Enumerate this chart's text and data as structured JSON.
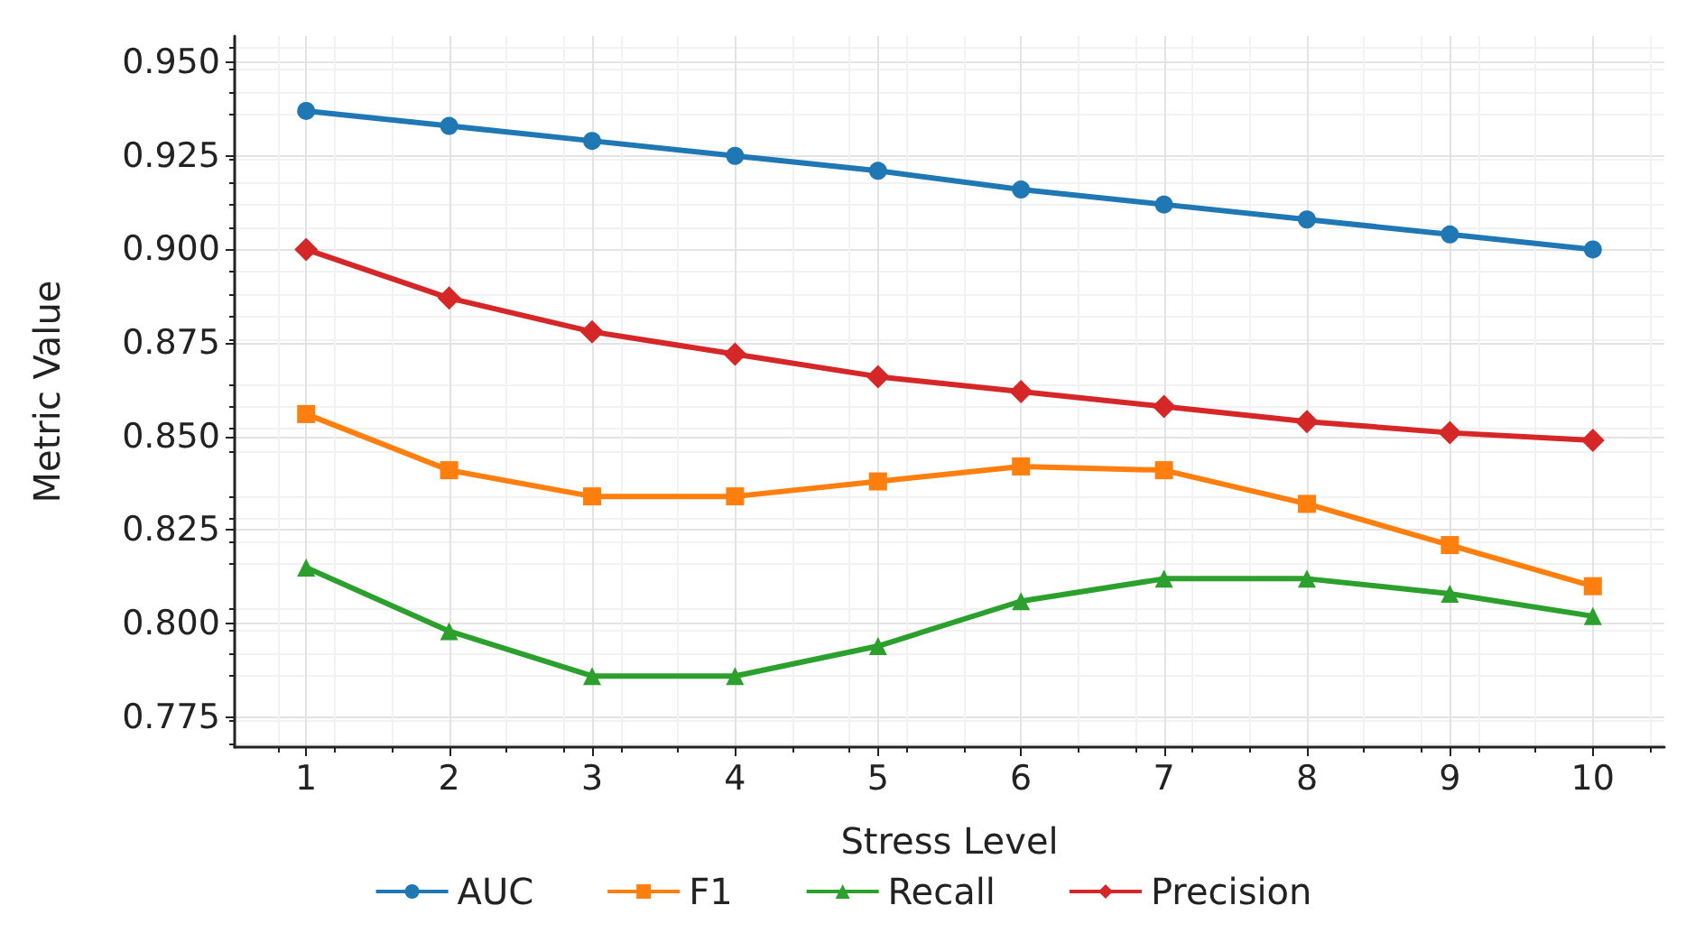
{
  "chart_data": {
    "type": "line",
    "xlabel": "Stress Level",
    "ylabel": "Metric Value",
    "x": [
      1,
      2,
      3,
      4,
      5,
      6,
      7,
      8,
      9,
      10
    ],
    "xlim": [
      0.5,
      10.5
    ],
    "xticks": [
      1,
      2,
      3,
      4,
      5,
      6,
      7,
      8,
      9,
      10
    ],
    "ylim": [
      0.767,
      0.957
    ],
    "yticks": [
      {
        "value": 0.775,
        "label": "0.775"
      },
      {
        "value": 0.8,
        "label": "0.800"
      },
      {
        "value": 0.825,
        "label": "0.825"
      },
      {
        "value": 0.85,
        "label": "0.850"
      },
      {
        "value": 0.875,
        "label": "0.875"
      },
      {
        "value": 0.9,
        "label": "0.900"
      },
      {
        "value": 0.925,
        "label": "0.925"
      },
      {
        "value": 0.95,
        "label": "0.950"
      }
    ],
    "grid": true,
    "legend": "bottom",
    "line_style": "solid",
    "series": [
      {
        "name": "AUC",
        "color": "#1f77b4",
        "marker": "circle",
        "values": [
          0.937,
          0.933,
          0.929,
          0.925,
          0.921,
          0.916,
          0.912,
          0.908,
          0.904,
          0.9
        ]
      },
      {
        "name": "F1",
        "color": "#ff7f0e",
        "marker": "square",
        "values": [
          0.856,
          0.841,
          0.834,
          0.834,
          0.838,
          0.842,
          0.841,
          0.832,
          0.821,
          0.81
        ]
      },
      {
        "name": "Recall",
        "color": "#2ca02c",
        "marker": "triangle",
        "values": [
          0.815,
          0.798,
          0.786,
          0.786,
          0.794,
          0.806,
          0.812,
          0.812,
          0.808,
          0.802
        ]
      },
      {
        "name": "Precision",
        "color": "#d62728",
        "marker": "diamond",
        "values": [
          0.9,
          0.887,
          0.878,
          0.872,
          0.866,
          0.862,
          0.858,
          0.854,
          0.851,
          0.849
        ]
      }
    ]
  }
}
